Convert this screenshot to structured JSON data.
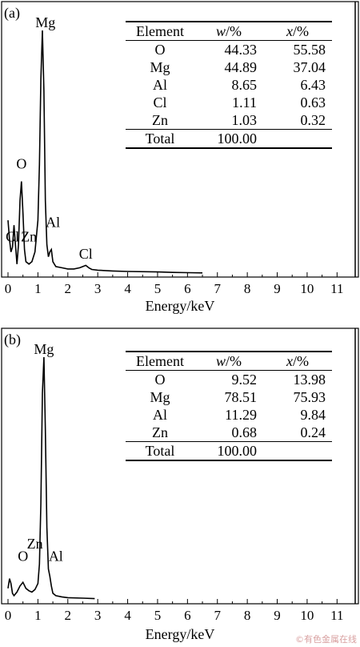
{
  "chart_data": [
    {
      "type": "line",
      "panel_label": "(a)",
      "xlabel": "Energy/keV",
      "xlim": [
        0,
        11.5
      ],
      "xticks": [
        "0",
        "1",
        "2",
        "3",
        "4",
        "5",
        "6",
        "7",
        "8",
        "9",
        "10",
        "11"
      ],
      "spectrum": {
        "x": [
          0.0,
          0.05,
          0.1,
          0.15,
          0.2,
          0.25,
          0.3,
          0.35,
          0.4,
          0.45,
          0.5,
          0.55,
          0.6,
          0.7,
          0.8,
          0.9,
          1.0,
          1.05,
          1.1,
          1.15,
          1.2,
          1.25,
          1.3,
          1.35,
          1.4,
          1.45,
          1.5,
          1.6,
          1.8,
          2.0,
          2.2,
          2.4,
          2.5,
          2.6,
          2.7,
          2.8,
          3.0,
          3.5,
          4.0,
          5.0,
          5.5,
          6.0,
          6.5
        ],
        "y": [
          0.22,
          0.14,
          0.09,
          0.11,
          0.2,
          0.12,
          0.04,
          0.12,
          0.3,
          0.38,
          0.25,
          0.1,
          0.05,
          0.04,
          0.05,
          0.09,
          0.22,
          0.45,
          0.8,
          1.0,
          0.75,
          0.3,
          0.12,
          0.07,
          0.09,
          0.1,
          0.05,
          0.03,
          0.025,
          0.02,
          0.02,
          0.025,
          0.03,
          0.035,
          0.025,
          0.018,
          0.015,
          0.012,
          0.01,
          0.008,
          0.006,
          0.005,
          0.004
        ]
      },
      "peak_labels": [
        {
          "text": "Mg",
          "x": 1.25,
          "y": 1.0
        },
        {
          "text": "O",
          "x": 0.45,
          "y": 0.42
        },
        {
          "text": "Cl",
          "x": 0.15,
          "y": 0.12
        },
        {
          "text": "Zn",
          "x": 0.7,
          "y": 0.12
        },
        {
          "text": "Al",
          "x": 1.5,
          "y": 0.18
        },
        {
          "text": "Cl",
          "x": 2.6,
          "y": 0.05
        }
      ],
      "table": {
        "headers": [
          "Element",
          "w",
          "/%",
          "x",
          "/%"
        ],
        "rows": [
          [
            "O",
            "44.33",
            "55.58"
          ],
          [
            "Mg",
            "44.89",
            "37.04"
          ],
          [
            "Al",
            "8.65",
            "6.43"
          ],
          [
            "Cl",
            "1.11",
            "0.63"
          ],
          [
            "Zn",
            "1.03",
            "0.32"
          ]
        ],
        "total": [
          "Total",
          "100.00"
        ]
      }
    },
    {
      "type": "line",
      "panel_label": "(b)",
      "xlabel": "Energy/keV",
      "xlim": [
        0,
        11.5
      ],
      "xticks": [
        "0",
        "1",
        "2",
        "3",
        "4",
        "5",
        "6",
        "7",
        "8",
        "9",
        "10",
        "11"
      ],
      "spectrum": {
        "x": [
          0.0,
          0.05,
          0.1,
          0.15,
          0.2,
          0.3,
          0.4,
          0.5,
          0.6,
          0.7,
          0.8,
          0.9,
          1.0,
          1.05,
          1.1,
          1.15,
          1.2,
          1.25,
          1.3,
          1.35,
          1.4,
          1.45,
          1.5,
          1.6,
          1.8,
          2.0,
          2.5,
          2.9
        ],
        "y": [
          0.05,
          0.09,
          0.07,
          0.03,
          0.02,
          0.035,
          0.06,
          0.075,
          0.05,
          0.04,
          0.035,
          0.045,
          0.07,
          0.15,
          0.4,
          0.85,
          1.0,
          0.7,
          0.3,
          0.13,
          0.1,
          0.06,
          0.03,
          0.02,
          0.015,
          0.012,
          0.01,
          0.008
        ]
      },
      "peak_labels": [
        {
          "text": "Mg",
          "x": 1.2,
          "y": 1.0
        },
        {
          "text": "Zn",
          "x": 0.9,
          "y": 0.2
        },
        {
          "text": "O",
          "x": 0.5,
          "y": 0.15
        },
        {
          "text": "Al",
          "x": 1.6,
          "y": 0.15
        }
      ],
      "table": {
        "headers": [
          "Element",
          "w",
          "/%",
          "x",
          "/%"
        ],
        "rows": [
          [
            "O",
            "9.52",
            "13.98"
          ],
          [
            "Mg",
            "78.51",
            "75.93"
          ],
          [
            "Al",
            "11.29",
            "9.84"
          ],
          [
            "Zn",
            "0.68",
            "0.24"
          ]
        ],
        "total": [
          "Total",
          "100.00"
        ]
      }
    }
  ],
  "watermark": "©有色金属在线"
}
